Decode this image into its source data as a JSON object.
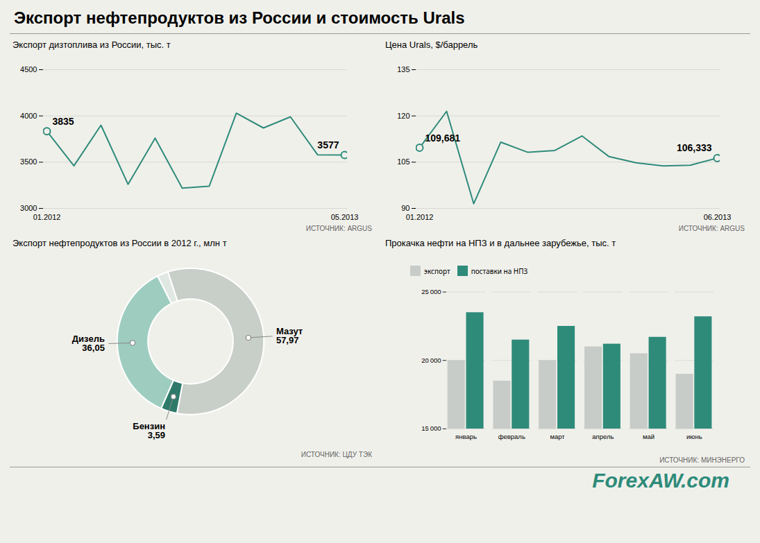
{
  "title": "Экспорт нефтепродуктов из России и стоимость Urals",
  "footer": "ForexAW.com",
  "footer_color": "#2e8b7a",
  "background": "#f0f0eb",
  "chart_data": [
    {
      "type": "line",
      "title": "Экспорт дизтоплива из России, тыс. т",
      "source": "ИСТОЧНИК: ARGUS",
      "categories": [
        "01.2012",
        null,
        null,
        null,
        null,
        null,
        null,
        null,
        null,
        null,
        null,
        "05.2013"
      ],
      "values": [
        3835,
        3460,
        3900,
        3260,
        3760,
        3220,
        3240,
        4030,
        3870,
        3990,
        3580,
        3577
      ],
      "value_labels": [
        "3835",
        null,
        null,
        null,
        null,
        null,
        null,
        null,
        null,
        null,
        null,
        "3577"
      ],
      "data_labels": true,
      "color": "#2e8b7a",
      "ylim": [
        3000,
        4500
      ],
      "yticks": [
        3000,
        3500,
        4000,
        4500
      ],
      "grid": true
    },
    {
      "type": "line",
      "title": "Цена Urals, $/баррель",
      "source": "ИСТОЧНИК: ARGUS",
      "categories": [
        "01.2012",
        null,
        null,
        null,
        null,
        null,
        null,
        null,
        null,
        null,
        null,
        "06.2013"
      ],
      "values": [
        109.681,
        121.5,
        91.5,
        111.5,
        108.2,
        108.8,
        113.5,
        106.8,
        104.8,
        103.8,
        104.0,
        106.333
      ],
      "value_labels": [
        "109,681",
        null,
        null,
        null,
        null,
        null,
        null,
        null,
        null,
        null,
        null,
        "106,333"
      ],
      "data_labels": true,
      "color": "#2e8b7a",
      "ylim": [
        90,
        135
      ],
      "yticks": [
        90,
        105,
        120,
        135
      ],
      "grid": true
    },
    {
      "type": "pie",
      "title": "Экспорт нефтепродуктов из России в 2012 г., млн т",
      "source": "ИСТОЧНИК: ЦДУ ТЭК",
      "categories": [
        "Мазут",
        "Бензин",
        "Дизель",
        null
      ],
      "values": [
        57.97,
        3.59,
        36.05,
        2.39
      ],
      "value_labels": [
        "57,97",
        "3,59",
        "36,05",
        null
      ],
      "colors": [
        "#c8cec8",
        "#2e7a6a",
        "#9ecdc0",
        "#e0e8e4"
      ],
      "data_labels": true
    },
    {
      "type": "bar",
      "title": "Прокачка нефти на НПЗ и в дальнее зарубежье, тыс. т",
      "source": "ИСТОЧНИК: МИНЭНЕРГО",
      "categories": [
        "январь",
        "февраль",
        "март",
        "апрель",
        "май",
        "июнь"
      ],
      "series": [
        {
          "name": "экспорт",
          "color": "#c8ccc8",
          "values": [
            20000,
            18500,
            20000,
            21000,
            20500,
            19000
          ]
        },
        {
          "name": "поставки на НПЗ",
          "color": "#2e8b7a",
          "values": [
            23500,
            21500,
            22500,
            21200,
            21700,
            23200
          ]
        }
      ],
      "ylim": [
        15000,
        25000
      ],
      "yticks": [
        {
          "value": 15000,
          "label": "15 000"
        },
        {
          "value": 20000,
          "label": "20 000"
        },
        {
          "value": 25000,
          "label": "25 000"
        }
      ],
      "grid": true,
      "legend": "upper left"
    }
  ]
}
